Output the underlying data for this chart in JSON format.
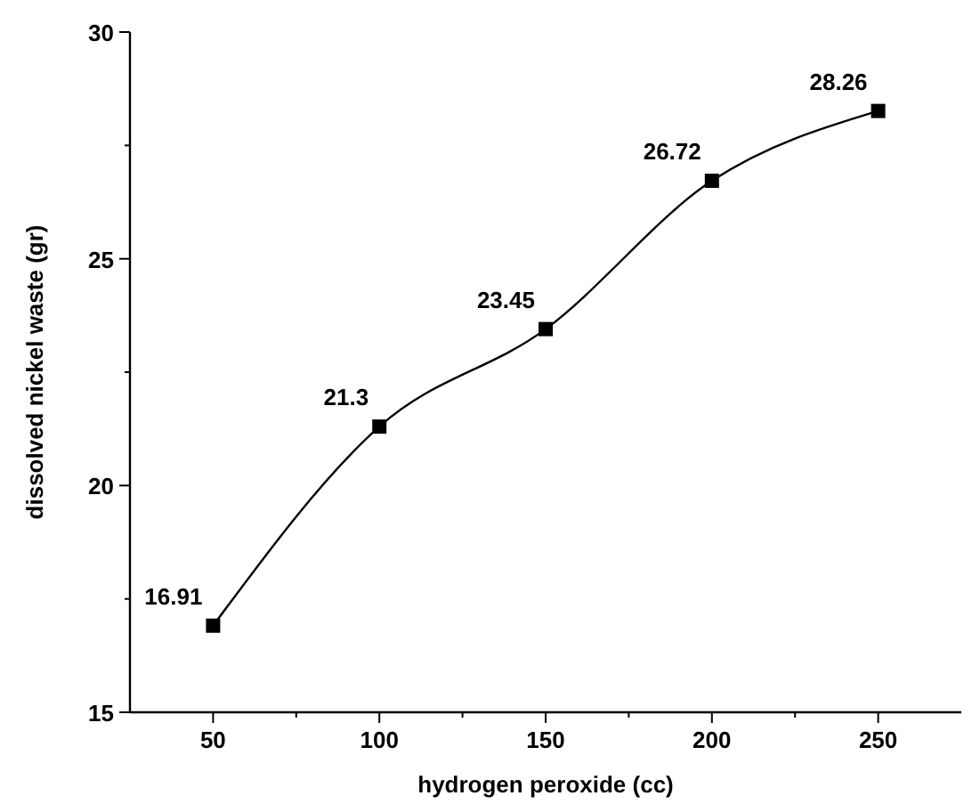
{
  "chart_data": {
    "type": "line",
    "xlabel": "hydrogen peroxide (cc)",
    "ylabel": "dissolved nickel waste (gr)",
    "x": [
      50,
      100,
      150,
      200,
      250
    ],
    "series": [
      {
        "color": "#000000",
        "values": [
          16.91,
          21.3,
          23.45,
          26.72,
          28.26
        ]
      }
    ],
    "xlim": [
      25,
      275
    ],
    "ylim": [
      15,
      30
    ],
    "xticks": [
      50,
      {
        "value": 75,
        "label": null
      },
      100,
      {
        "value": 125,
        "label": null
      },
      150,
      {
        "value": 175,
        "label": null
      },
      200,
      {
        "value": 225,
        "label": null
      },
      250
    ],
    "yticks": [
      15,
      {
        "value": 17.5,
        "label": null
      },
      20,
      {
        "value": 22.5,
        "label": null
      },
      25,
      {
        "value": 27.5,
        "label": null
      },
      30
    ],
    "marker": "square",
    "data_labels": true
  }
}
